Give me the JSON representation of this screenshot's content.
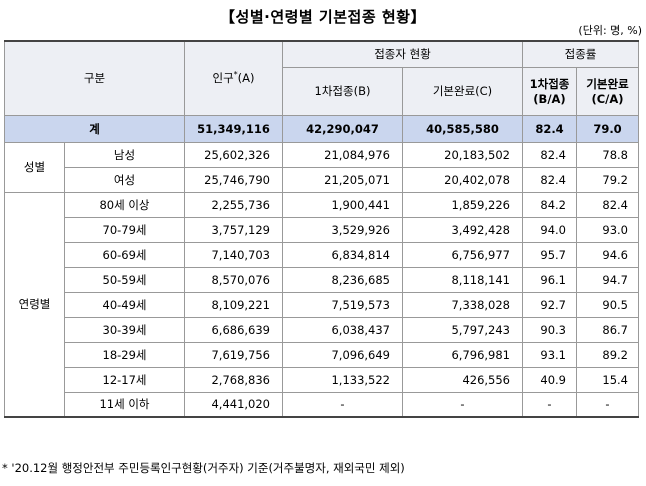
{
  "title": "【성별·연령별 기본접종 현황】",
  "unit": "(단위: 명, %)",
  "header": {
    "category": "구분",
    "population": "인구",
    "population_sup": "*",
    "population_suffix": "(A)",
    "vaccinated_status": "접종자 현황",
    "first_dose": "1차접종(B)",
    "complete": "기본완료(C)",
    "rate": "접종률",
    "first_rate_line1": "1차접종",
    "first_rate_line2": "(B/A)",
    "complete_rate_line1": "기본완료",
    "complete_rate_line2": "(C/A)"
  },
  "total": {
    "label": "계",
    "population": "51,349,116",
    "first_dose": "42,290,047",
    "complete": "40,585,580",
    "first_rate": "82.4",
    "complete_rate": "79.0"
  },
  "gender": {
    "group_label": "성별",
    "rows": [
      {
        "label": "남성",
        "population": "25,602,326",
        "first_dose": "21,084,976",
        "complete": "20,183,502",
        "first_rate": "82.4",
        "complete_rate": "78.8"
      },
      {
        "label": "여성",
        "population": "25,746,790",
        "first_dose": "21,205,071",
        "complete": "20,402,078",
        "first_rate": "82.4",
        "complete_rate": "79.2"
      }
    ]
  },
  "age": {
    "group_label": "연령별",
    "rows": [
      {
        "label": "80세 이상",
        "population": "2,255,736",
        "first_dose": "1,900,441",
        "complete": "1,859,226",
        "first_rate": "84.2",
        "complete_rate": "82.4"
      },
      {
        "label": "70-79세",
        "population": "3,757,129",
        "first_dose": "3,529,926",
        "complete": "3,492,428",
        "first_rate": "94.0",
        "complete_rate": "93.0"
      },
      {
        "label": "60-69세",
        "population": "7,140,703",
        "first_dose": "6,834,814",
        "complete": "6,756,977",
        "first_rate": "95.7",
        "complete_rate": "94.6"
      },
      {
        "label": "50-59세",
        "population": "8,570,076",
        "first_dose": "8,236,685",
        "complete": "8,118,141",
        "first_rate": "96.1",
        "complete_rate": "94.7"
      },
      {
        "label": "40-49세",
        "population": "8,109,221",
        "first_dose": "7,519,573",
        "complete": "7,338,028",
        "first_rate": "92.7",
        "complete_rate": "90.5"
      },
      {
        "label": "30-39세",
        "population": "6,686,639",
        "first_dose": "6,038,437",
        "complete": "5,797,243",
        "first_rate": "90.3",
        "complete_rate": "86.7"
      },
      {
        "label": "18-29세",
        "population": "7,619,756",
        "first_dose": "7,096,649",
        "complete": "6,796,981",
        "first_rate": "93.1",
        "complete_rate": "89.2"
      },
      {
        "label": "12-17세",
        "population": "2,768,836",
        "first_dose": "1,133,522",
        "complete": "426,556",
        "first_rate": "40.9",
        "complete_rate": "15.4"
      },
      {
        "label": "11세 이하",
        "population": "4,441,020",
        "first_dose": "-",
        "complete": "-",
        "first_rate": "-",
        "complete_rate": "-"
      }
    ]
  },
  "footnote": "* '20.12월 행정안전부 주민등록인구현황(거주자) 기준(거주불명자, 재외국민 제외)"
}
